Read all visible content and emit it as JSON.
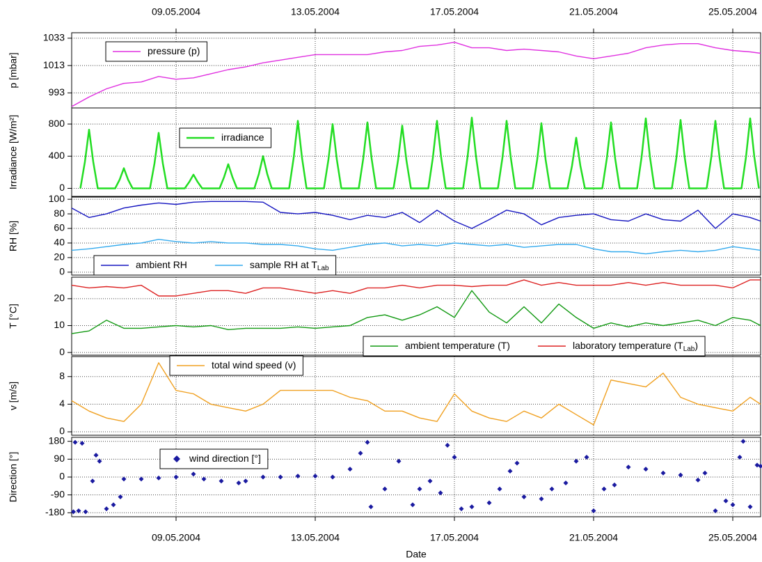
{
  "chart_data": [
    {
      "type": "line",
      "ylabel": "p [mbar]",
      "xlim": [
        6,
        25.8
      ],
      "ylim": [
        982,
        1037
      ],
      "yticks": [
        993,
        1013,
        1033
      ],
      "grid": true,
      "xticks": [
        {
          "value": 9,
          "label": "09.05.2004"
        },
        {
          "value": 13,
          "label": "13.05.2004"
        },
        {
          "value": 17,
          "label": "17.05.2004"
        },
        {
          "value": 21,
          "label": "21.05.2004"
        },
        {
          "value": 25,
          "label": "25.05.2004"
        }
      ],
      "x": [
        6,
        6.5,
        7,
        7.5,
        8,
        8.5,
        9,
        9.5,
        10,
        10.5,
        11,
        11.5,
        12,
        12.5,
        13,
        13.5,
        14,
        14.5,
        15,
        15.5,
        16,
        16.5,
        17,
        17.5,
        18,
        18.5,
        19,
        19.5,
        20,
        20.5,
        21,
        21.5,
        22,
        22.5,
        23,
        23.5,
        24,
        24.5,
        25,
        25.5,
        25.8
      ],
      "series": [
        {
          "name": "pressure (p)",
          "color": "#e030e0",
          "values": [
            983,
            990,
            996,
            1000,
            1001,
            1005,
            1003,
            1004,
            1007,
            1010,
            1012,
            1015,
            1017,
            1019,
            1021,
            1021,
            1021,
            1021,
            1023,
            1024,
            1027,
            1028,
            1030,
            1026,
            1026,
            1024,
            1025,
            1024,
            1023,
            1020,
            1018,
            1020,
            1022,
            1026,
            1028,
            1029,
            1029,
            1026,
            1024,
            1023,
            1022
          ]
        }
      ]
    },
    {
      "type": "line",
      "ylabel": "Irradiance [W/m²]",
      "xlim": [
        6,
        25.8
      ],
      "ylim": [
        -100,
        1000
      ],
      "yticks": [
        0,
        400,
        800
      ],
      "grid": true,
      "x": [
        6.25,
        6.38,
        6.5,
        6.62,
        6.75,
        7.25,
        7.38,
        7.5,
        7.62,
        7.75,
        8.25,
        8.38,
        8.5,
        8.62,
        8.75,
        9.25,
        9.38,
        9.5,
        9.62,
        9.75,
        10.25,
        10.38,
        10.5,
        10.62,
        10.75,
        11.25,
        11.38,
        11.5,
        11.62,
        11.75,
        12.25,
        12.38,
        12.5,
        12.62,
        12.75,
        13.25,
        13.38,
        13.5,
        13.62,
        13.75,
        14.25,
        14.38,
        14.5,
        14.62,
        14.75,
        15.25,
        15.38,
        15.5,
        15.62,
        15.75,
        16.25,
        16.38,
        16.5,
        16.62,
        16.75,
        17.25,
        17.38,
        17.5,
        17.62,
        17.75,
        18.25,
        18.38,
        18.5,
        18.62,
        18.75,
        19.25,
        19.38,
        19.5,
        19.62,
        19.75,
        20.25,
        20.38,
        20.5,
        20.62,
        20.75,
        21.25,
        21.38,
        21.5,
        21.62,
        21.75,
        22.25,
        22.38,
        22.5,
        22.62,
        22.75,
        23.25,
        23.38,
        23.5,
        23.62,
        23.75,
        24.25,
        24.38,
        24.5,
        24.62,
        24.75,
        25.25,
        25.38,
        25.5,
        25.62,
        25.75
      ],
      "series": [
        {
          "name": "irradiance",
          "color": "#22dd22",
          "values": [
            0,
            330,
            730,
            330,
            0,
            0,
            110,
            250,
            110,
            0,
            0,
            310,
            690,
            310,
            0,
            0,
            80,
            170,
            80,
            0,
            0,
            140,
            300,
            140,
            0,
            0,
            180,
            400,
            180,
            0,
            0,
            380,
            840,
            380,
            0,
            0,
            360,
            800,
            360,
            0,
            0,
            370,
            820,
            370,
            0,
            0,
            350,
            780,
            350,
            0,
            0,
            380,
            840,
            380,
            0,
            0,
            400,
            880,
            400,
            0,
            0,
            380,
            840,
            380,
            0,
            0,
            360,
            810,
            360,
            0,
            0,
            280,
            630,
            280,
            0,
            0,
            370,
            820,
            370,
            0,
            0,
            390,
            870,
            390,
            0,
            0,
            380,
            850,
            380,
            0,
            0,
            380,
            840,
            380,
            0,
            0,
            390,
            870,
            390,
            0
          ]
        }
      ]
    },
    {
      "type": "line",
      "ylabel": "RH [%]",
      "xlim": [
        6,
        25.8
      ],
      "ylim": [
        -4,
        103
      ],
      "yticks": [
        0,
        20,
        40,
        60,
        80,
        100
      ],
      "grid": true,
      "x": [
        6,
        6.5,
        7,
        7.5,
        8,
        8.5,
        9,
        9.5,
        10,
        10.5,
        11,
        11.5,
        12,
        12.5,
        13,
        13.5,
        14,
        14.5,
        15,
        15.5,
        16,
        16.5,
        17,
        17.5,
        18,
        18.5,
        19,
        19.5,
        20,
        20.5,
        21,
        21.5,
        22,
        22.5,
        23,
        23.5,
        24,
        24.5,
        25,
        25.5,
        25.8
      ],
      "series": [
        {
          "name": "ambient RH",
          "color": "#1515c0",
          "values": [
            88,
            75,
            80,
            88,
            92,
            95,
            93,
            96,
            97,
            97,
            97,
            96,
            82,
            80,
            82,
            78,
            72,
            78,
            75,
            82,
            68,
            85,
            70,
            60,
            72,
            85,
            80,
            65,
            75,
            78,
            80,
            72,
            70,
            80,
            72,
            70,
            85,
            60,
            80,
            75,
            70
          ]
        },
        {
          "name": "sample RH at T",
          "name_sub": "Lab",
          "color": "#33aaee",
          "values": [
            30,
            32,
            35,
            38,
            40,
            45,
            42,
            40,
            42,
            40,
            40,
            38,
            38,
            36,
            32,
            30,
            34,
            38,
            40,
            36,
            38,
            36,
            40,
            38,
            36,
            38,
            34,
            36,
            38,
            38,
            32,
            28,
            28,
            25,
            28,
            30,
            28,
            30,
            35,
            32,
            30
          ]
        }
      ]
    },
    {
      "type": "line",
      "ylabel": "T [°C]",
      "xlim": [
        6,
        25.8
      ],
      "ylim": [
        -1,
        28
      ],
      "yticks": [
        0,
        10,
        20
      ],
      "grid": true,
      "x": [
        6,
        6.5,
        7,
        7.5,
        8,
        8.5,
        9,
        9.5,
        10,
        10.5,
        11,
        11.5,
        12,
        12.5,
        13,
        13.5,
        14,
        14.5,
        15,
        15.5,
        16,
        16.5,
        17,
        17.5,
        18,
        18.5,
        19,
        19.5,
        20,
        20.5,
        21,
        21.5,
        22,
        22.5,
        23,
        23.5,
        24,
        24.5,
        25,
        25.5,
        25.8
      ],
      "series": [
        {
          "name": "ambient temperature (T)",
          "color": "#119911",
          "values": [
            7,
            8,
            12,
            9,
            9,
            9.5,
            10,
            9.5,
            10,
            8.5,
            9,
            9,
            9,
            9.5,
            9,
            9.5,
            10,
            13,
            14,
            12,
            14,
            17,
            13,
            23,
            15,
            11,
            17,
            11,
            18,
            13,
            9,
            11,
            9.5,
            11,
            10,
            11,
            12,
            10,
            13,
            12,
            10
          ]
        },
        {
          "name": "laboratory temperature (T",
          "name_sub": "Lab",
          "name_suffix": ")",
          "color": "#dd2222",
          "values": [
            25,
            24,
            24.5,
            24,
            25,
            21,
            21,
            22,
            23,
            23,
            22,
            24,
            24,
            23,
            22,
            23,
            22,
            24,
            24,
            25,
            24,
            25,
            25,
            24.5,
            25,
            25,
            27,
            25,
            26,
            25,
            25,
            25,
            26,
            25,
            26,
            25,
            25,
            25,
            24,
            27,
            27
          ]
        }
      ]
    },
    {
      "type": "line",
      "ylabel": "v [m/s]",
      "xlim": [
        6,
        25.8
      ],
      "ylim": [
        -0.5,
        10.9
      ],
      "yticks": [
        0,
        4,
        8
      ],
      "grid": true,
      "x": [
        6,
        6.5,
        7,
        7.5,
        8,
        8.5,
        9,
        9.5,
        10,
        10.5,
        11,
        11.5,
        12,
        12.5,
        13,
        13.5,
        14,
        14.5,
        15,
        15.5,
        16,
        16.5,
        17,
        17.5,
        18,
        18.5,
        19,
        19.5,
        20,
        20.5,
        21,
        21.5,
        22,
        22.5,
        23,
        23.5,
        24,
        24.5,
        25,
        25.5,
        25.8
      ],
      "series": [
        {
          "name": "total wind speed (v)",
          "color": "#f0a020",
          "values": [
            4.5,
            3,
            2,
            1.5,
            4,
            10,
            6,
            5.5,
            4,
            3.5,
            3,
            4,
            6,
            6,
            6,
            6,
            5,
            4.5,
            3,
            3,
            2,
            1.5,
            5.5,
            3,
            2,
            1.5,
            3,
            2,
            4,
            2.5,
            1,
            7.5,
            7,
            6.5,
            8.5,
            5,
            4,
            3.5,
            3,
            5,
            4
          ]
        }
      ]
    },
    {
      "type": "scatter",
      "ylabel": "Direction [°]",
      "xlabel": "Date",
      "xlim": [
        6,
        25.8
      ],
      "ylim": [
        -200,
        200
      ],
      "yticks": [
        -180,
        -90,
        0,
        90,
        180
      ],
      "grid": true,
      "xticks": [
        {
          "value": 9,
          "label": "09.05.2004"
        },
        {
          "value": 13,
          "label": "13.05.2004"
        },
        {
          "value": 17,
          "label": "17.05.2004"
        },
        {
          "value": 21,
          "label": "21.05.2004"
        },
        {
          "value": 25,
          "label": "25.05.2004"
        }
      ],
      "x": [
        6.05,
        6.1,
        6.2,
        6.3,
        6.4,
        6.6,
        6.7,
        6.8,
        7.0,
        7.2,
        7.4,
        7.5,
        8.0,
        8.5,
        9.0,
        9.5,
        9.8,
        10.3,
        10.8,
        11.0,
        11.5,
        12.0,
        12.5,
        13.0,
        13.5,
        14.0,
        14.3,
        14.5,
        14.6,
        15.0,
        15.4,
        15.8,
        16.0,
        16.3,
        16.6,
        16.8,
        17.0,
        17.2,
        17.5,
        18.0,
        18.3,
        18.6,
        18.8,
        19.0,
        19.5,
        19.8,
        20.2,
        20.5,
        20.8,
        21.0,
        21.3,
        21.6,
        22.0,
        22.5,
        23.0,
        23.5,
        24.0,
        24.2,
        24.5,
        24.8,
        25.0,
        25.2,
        25.3,
        25.5,
        25.7,
        25.8
      ],
      "series": [
        {
          "name": "wind direction [°]",
          "color": "#1a1aa0",
          "values": [
            -175,
            175,
            -170,
            170,
            -175,
            -20,
            110,
            80,
            -160,
            -140,
            -100,
            -10,
            -10,
            -5,
            0,
            15,
            -10,
            -20,
            -30,
            -20,
            0,
            0,
            5,
            5,
            0,
            40,
            120,
            175,
            -150,
            -60,
            80,
            -140,
            -60,
            -20,
            -80,
            160,
            100,
            -160,
            -150,
            -130,
            -60,
            30,
            70,
            -100,
            -110,
            -60,
            -30,
            80,
            100,
            -170,
            -60,
            -40,
            50,
            40,
            20,
            10,
            -15,
            20,
            -170,
            -120,
            -140,
            100,
            180,
            -150,
            60,
            55
          ]
        }
      ]
    }
  ]
}
